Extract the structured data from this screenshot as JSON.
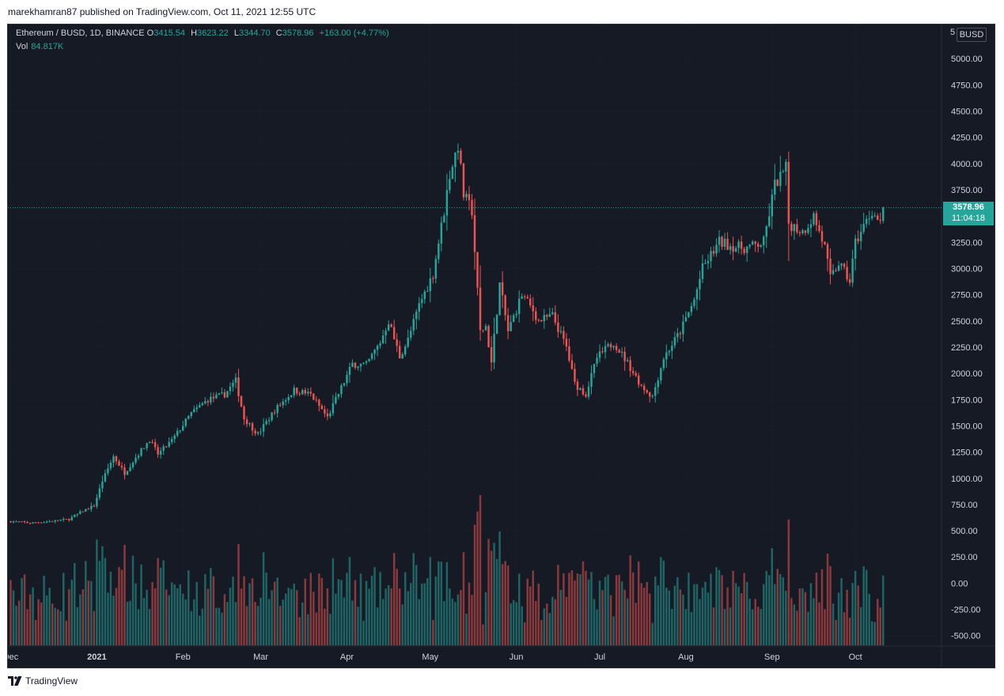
{
  "publisher_line": "marekhamran87 published on TradingView.com, Oct 11, 2021 12:55 UTC",
  "footer": {
    "brand": "TradingView",
    "logo_icon": "tradingview-logo-icon"
  },
  "legend": {
    "symbol": "Ethereum / BUSD, 1D, BINANCE",
    "open_key": "O",
    "open": "3415.54",
    "high_key": "H",
    "high": "3623.22",
    "low_key": "L",
    "low": "3344.70",
    "close_key": "C",
    "close": "3578.96",
    "change": "+163.00 (+4.77%)",
    "vol_label": "Vol",
    "vol": "84.817K"
  },
  "scale_mode": "5",
  "currency": "BUSD",
  "last_price": {
    "price": "3578.96",
    "countdown": "11:04:18"
  },
  "colors": {
    "up": "#26a69a",
    "down": "#ef5350",
    "background": "#161a25",
    "grid": "#20232e",
    "text": "#d1d4dc",
    "last_line": "#26a69a"
  },
  "chart_data": {
    "type": "candlestick",
    "symbol": "Ethereum / BUSD",
    "interval": "1D",
    "exchange": "BINANCE",
    "y_ticks": [
      "5000.00",
      "4750.00",
      "4500.00",
      "4250.00",
      "4000.00",
      "3750.00",
      "3500.00",
      "3250.00",
      "3000.00",
      "2750.00",
      "2500.00",
      "2250.00",
      "2000.00",
      "1750.00",
      "1500.00",
      "1250.00",
      "1000.00",
      "750.00",
      "500.00",
      "250.00",
      "0.00",
      "-250.00",
      "-500.00"
    ],
    "y_tick_values": [
      5000,
      4750,
      4500,
      4250,
      4000,
      3750,
      3500,
      3250,
      3000,
      2750,
      2500,
      2250,
      2000,
      1750,
      1500,
      1250,
      1000,
      750,
      500,
      250,
      0,
      -250,
      -500
    ],
    "ylim": [
      -600,
      5250
    ],
    "x_range": [
      "2020-11-30",
      "2021-11-01"
    ],
    "x_ticks": [
      {
        "label": "Dec",
        "date": "2020-12-01"
      },
      {
        "label": "2021",
        "date": "2021-01-01"
      },
      {
        "label": "Feb",
        "date": "2021-02-01"
      },
      {
        "label": "Mar",
        "date": "2021-03-01"
      },
      {
        "label": "Apr",
        "date": "2021-04-01"
      },
      {
        "label": "May",
        "date": "2021-05-01"
      },
      {
        "label": "Jun",
        "date": "2021-06-01"
      },
      {
        "label": "Jul",
        "date": "2021-07-01"
      },
      {
        "label": "Aug",
        "date": "2021-08-01"
      },
      {
        "label": "Sep",
        "date": "2021-09-01"
      },
      {
        "label": "Oct",
        "date": "2021-10-01"
      }
    ],
    "start_date": "2020-12-01",
    "close_anchors": [
      [
        "2020-12-01",
        590
      ],
      [
        "2020-12-08",
        575
      ],
      [
        "2020-12-15",
        590
      ],
      [
        "2020-12-22",
        610
      ],
      [
        "2020-12-27",
        690
      ],
      [
        "2020-12-31",
        740
      ],
      [
        "2021-01-03",
        975
      ],
      [
        "2021-01-07",
        1210
      ],
      [
        "2021-01-11",
        1050
      ],
      [
        "2021-01-15",
        1200
      ],
      [
        "2021-01-20",
        1370
      ],
      [
        "2021-01-23",
        1230
      ],
      [
        "2021-01-28",
        1360
      ],
      [
        "2021-02-04",
        1620
      ],
      [
        "2021-02-10",
        1750
      ],
      [
        "2021-02-16",
        1800
      ],
      [
        "2021-02-20",
        1930
      ],
      [
        "2021-02-23",
        1570
      ],
      [
        "2021-02-28",
        1420
      ],
      [
        "2021-03-06",
        1650
      ],
      [
        "2021-03-13",
        1840
      ],
      [
        "2021-03-19",
        1800
      ],
      [
        "2021-03-25",
        1580
      ],
      [
        "2021-03-31",
        1920
      ],
      [
        "2021-04-03",
        2090
      ],
      [
        "2021-04-08",
        2080
      ],
      [
        "2021-04-13",
        2300
      ],
      [
        "2021-04-16",
        2500
      ],
      [
        "2021-04-20",
        2160
      ],
      [
        "2021-04-23",
        2320
      ],
      [
        "2021-04-27",
        2650
      ],
      [
        "2021-05-02",
        2950
      ],
      [
        "2021-05-04",
        3250
      ],
      [
        "2021-05-06",
        3550
      ],
      [
        "2021-05-08",
        3900
      ],
      [
        "2021-05-11",
        4180
      ],
      [
        "2021-05-13",
        3700
      ],
      [
        "2021-05-16",
        3550
      ],
      [
        "2021-05-19",
        2400
      ],
      [
        "2021-05-21",
        2450
      ],
      [
        "2021-05-23",
        2100
      ],
      [
        "2021-05-26",
        2850
      ],
      [
        "2021-05-29",
        2400
      ],
      [
        "2021-06-03",
        2750
      ],
      [
        "2021-06-07",
        2600
      ],
      [
        "2021-06-09",
        2500
      ],
      [
        "2021-06-14",
        2550
      ],
      [
        "2021-06-19",
        2250
      ],
      [
        "2021-06-22",
        1900
      ],
      [
        "2021-06-26",
        1800
      ],
      [
        "2021-06-30",
        2150
      ],
      [
        "2021-07-06",
        2300
      ],
      [
        "2021-07-11",
        2100
      ],
      [
        "2021-07-16",
        1880
      ],
      [
        "2021-07-20",
        1780
      ],
      [
        "2021-07-24",
        2150
      ],
      [
        "2021-07-30",
        2400
      ],
      [
        "2021-08-04",
        2700
      ],
      [
        "2021-08-07",
        3000
      ],
      [
        "2021-08-13",
        3250
      ],
      [
        "2021-08-20",
        3200
      ],
      [
        "2021-08-24",
        3200
      ],
      [
        "2021-08-29",
        3250
      ],
      [
        "2021-09-02",
        3800
      ],
      [
        "2021-09-06",
        3950
      ],
      [
        "2021-09-07",
        3430
      ],
      [
        "2021-09-12",
        3350
      ],
      [
        "2021-09-16",
        3500
      ],
      [
        "2021-09-20",
        3200
      ],
      [
        "2021-09-22",
        2900
      ],
      [
        "2021-09-25",
        3050
      ],
      [
        "2021-09-29",
        2880
      ],
      [
        "2021-10-01",
        3250
      ],
      [
        "2021-10-04",
        3400
      ],
      [
        "2021-10-07",
        3550
      ],
      [
        "2021-10-10",
        3416
      ],
      [
        "2021-10-11",
        3579
      ]
    ],
    "last_close": 3578.96,
    "volume_note": "volume histogram overlaid on the lower part of the price axis"
  }
}
